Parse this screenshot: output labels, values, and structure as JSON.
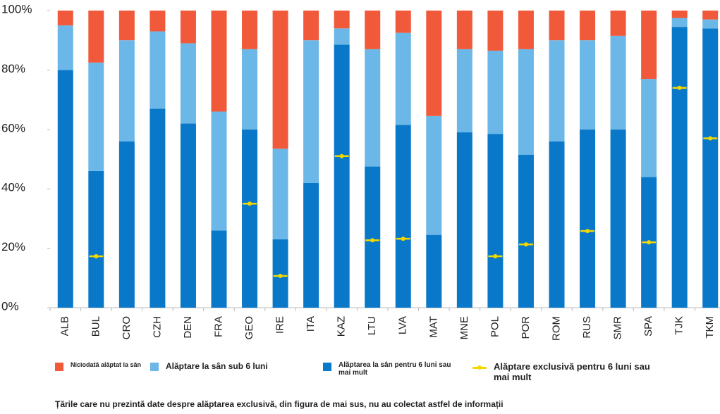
{
  "chart_data": {
    "type": "stacked-bar",
    "categories": [
      "ALB",
      "BUL",
      "CRO",
      "CZH",
      "DEN",
      "FRA",
      "GEO",
      "IRE",
      "ITA",
      "KAZ",
      "LTU",
      "LVA",
      "MAT",
      "MNE",
      "POL",
      "POR",
      "ROM",
      "RUS",
      "SMR",
      "SPA",
      "TJK",
      "TKM"
    ],
    "series": [
      {
        "name": "Niciodată alăptat la sân",
        "color": "#f05a3a",
        "values": [
          5,
          17.5,
          10,
          7,
          11,
          34,
          13,
          46.5,
          10,
          6,
          13,
          7.5,
          35.5,
          13,
          13.5,
          13,
          10,
          10,
          8.5,
          23,
          2.5,
          3
        ]
      },
      {
        "name": "Alăptare la sân sub 6 luni",
        "color": "#6bb8e8",
        "values": [
          15,
          36.5,
          34,
          26,
          27,
          40,
          27,
          30.5,
          48,
          5.5,
          39.5,
          31,
          40,
          28,
          28,
          35.5,
          34,
          30,
          31.5,
          33,
          3,
          3
        ]
      },
      {
        "name": "Alăptarea la sân pentru 6 luni sau mai mult",
        "color": "#0a78c8",
        "values": [
          80,
          46,
          56,
          67,
          62,
          26,
          60,
          23,
          42,
          88.5,
          47.5,
          61.5,
          24.5,
          59,
          58.5,
          51.5,
          56,
          60,
          60,
          44,
          94.5,
          94
        ]
      }
    ],
    "markers": {
      "name": "Alăptare exclusivă pentru 6 luni sau mai mult",
      "color": "#f5d800",
      "values": [
        null,
        17.3,
        null,
        null,
        null,
        null,
        35,
        10.7,
        null,
        51,
        22.7,
        23.2,
        null,
        null,
        17.3,
        21.3,
        null,
        25.8,
        null,
        22,
        74,
        57
      ]
    },
    "ylim": [
      0,
      100
    ],
    "yticks": [
      {
        "value": 0,
        "label": "0%"
      },
      {
        "value": 20,
        "label": "20%"
      },
      {
        "value": 40,
        "label": "40%"
      },
      {
        "value": 60,
        "label": "60%"
      },
      {
        "value": 80,
        "label": "80%"
      },
      {
        "value": 100,
        "label": "100%"
      }
    ],
    "note": "Țările care nu prezintă date despre alăptarea exclusivă, din figura de mai sus, nu au colectat astfel de informații"
  }
}
